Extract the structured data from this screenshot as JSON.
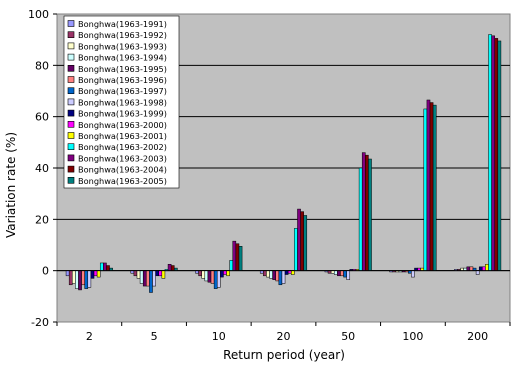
{
  "chart_data": {
    "type": "bar",
    "title": "",
    "xlabel": "Return period (year)",
    "ylabel": "Variation rate (%)",
    "ylim": [
      -20,
      100
    ],
    "yticks": [
      -20,
      0,
      20,
      40,
      60,
      80,
      100
    ],
    "grid": true,
    "legend_position": "top-left",
    "plot_background": "#c0c0c0",
    "categories": [
      "2",
      "5",
      "10",
      "20",
      "50",
      "100",
      "200"
    ],
    "series": [
      {
        "name": "Bonghwa(1963-1991)",
        "color": "#9999ff",
        "values": [
          -2,
          -1,
          -1,
          -1,
          -0.5,
          -0.5,
          0.5
        ]
      },
      {
        "name": "Bonghwa(1963-1992)",
        "color": "#993366",
        "values": [
          -5.5,
          -2,
          -2,
          -2,
          -1,
          -0.5,
          0.5
        ]
      },
      {
        "name": "Bonghwa(1963-1993)",
        "color": "#ffffcc",
        "values": [
          -5,
          -3,
          -3,
          -2.5,
          -1,
          -0.5,
          1
        ]
      },
      {
        "name": "Bonghwa(1963-1994)",
        "color": "#ccffff",
        "values": [
          -7,
          -5,
          -4,
          -3,
          -1.5,
          -0.5,
          1
        ]
      },
      {
        "name": "Bonghwa(1963-1995)",
        "color": "#660066",
        "values": [
          -7.5,
          -6,
          -4.5,
          -3.5,
          -2,
          -0.5,
          1.5
        ]
      },
      {
        "name": "Bonghwa(1963-1996)",
        "color": "#ff8080",
        "values": [
          -5.5,
          -6,
          -5,
          -4,
          -2,
          -0.5,
          1.5
        ]
      },
      {
        "name": "Bonghwa(1963-1997)",
        "color": "#0066cc",
        "values": [
          -7,
          -8.5,
          -7,
          -5.5,
          -2.5,
          -1,
          1
        ]
      },
      {
        "name": "Bonghwa(1963-1998)",
        "color": "#ccccff",
        "values": [
          -6.5,
          -6,
          -6.5,
          -5,
          -3.5,
          -2.5,
          -1.5
        ]
      },
      {
        "name": "Bonghwa(1963-1999)",
        "color": "#000080",
        "values": [
          -3,
          -2,
          -2.5,
          -1.5,
          0.5,
          1,
          1.5
        ]
      },
      {
        "name": "Bonghwa(1963-2000)",
        "color": "#ff00ff",
        "values": [
          -2,
          -2,
          -1.5,
          -1,
          0.5,
          1,
          1.5
        ]
      },
      {
        "name": "Bonghwa(1963-2001)",
        "color": "#ffff00",
        "values": [
          -2.5,
          -3,
          -2,
          -1.5,
          0.5,
          1,
          2.5
        ]
      },
      {
        "name": "Bonghwa(1963-2002)",
        "color": "#00ffff",
        "values": [
          3,
          0.5,
          4,
          16.5,
          40,
          63,
          92
        ]
      },
      {
        "name": "Bonghwa(1963-2003)",
        "color": "#800080",
        "values": [
          3,
          2.5,
          11.5,
          24,
          46,
          66.5,
          91.5
        ]
      },
      {
        "name": "Bonghwa(1963-2004)",
        "color": "#800000",
        "values": [
          2,
          2,
          10.5,
          23,
          45,
          65.5,
          90.5
        ]
      },
      {
        "name": "Bonghwa(1963-2005)",
        "color": "#008080",
        "values": [
          1,
          1,
          9.5,
          21.5,
          43.5,
          64.5,
          89.5
        ]
      }
    ]
  }
}
